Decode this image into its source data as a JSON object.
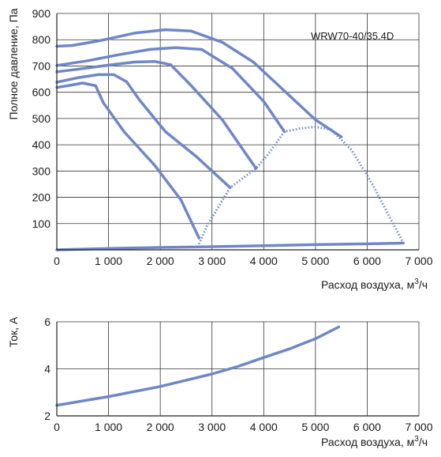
{
  "chart_data": [
    {
      "type": "line",
      "title": "",
      "annotation": "WRW70-40/35.4D",
      "ylabel": "Полное давление, Па",
      "xlabel": "Расход воздуха, м",
      "xlabel_sup": "3",
      "xlabel_suffix": "/ч",
      "xlim": [
        0,
        7000
      ],
      "ylim": [
        0,
        900
      ],
      "xticks": [
        0,
        1000,
        2000,
        3000,
        4000,
        5000,
        6000,
        7000
      ],
      "xtick_labels": [
        "0",
        "1 000",
        "2 000",
        "3 000",
        "4 000",
        "5 000",
        "6 000",
        "7 000"
      ],
      "yticks": [
        100,
        200,
        300,
        400,
        500,
        600,
        700,
        800,
        900
      ],
      "ytick_labels": [
        "100",
        "200",
        "300",
        "400",
        "500",
        "600",
        "700",
        "800",
        "900"
      ],
      "grid": true,
      "line_color": "#6f87c6",
      "series": [
        {
          "style": "solid",
          "x": [
            0,
            300,
            800,
            1500,
            2100,
            2600,
            3200,
            3800,
            4400,
            5000,
            5500
          ],
          "y": [
            775,
            778,
            795,
            825,
            838,
            833,
            790,
            715,
            605,
            495,
            430
          ]
        },
        {
          "style": "solid",
          "x": [
            0,
            600,
            1200,
            1800,
            2300,
            2800,
            3400,
            4000,
            4400
          ],
          "y": [
            702,
            720,
            743,
            763,
            770,
            763,
            690,
            565,
            450
          ]
        },
        {
          "style": "solid",
          "x": [
            0,
            500,
            1000,
            1500,
            1900,
            2200,
            2600,
            3200,
            3850
          ],
          "y": [
            678,
            690,
            703,
            715,
            717,
            705,
            625,
            495,
            310
          ]
        },
        {
          "style": "solid",
          "x": [
            0,
            400,
            800,
            1100,
            1350,
            1600,
            2100,
            2700,
            3350
          ],
          "y": [
            638,
            655,
            667,
            667,
            640,
            570,
            450,
            355,
            237
          ]
        },
        {
          "style": "solid",
          "x": [
            0,
            300,
            500,
            750,
            900,
            1300,
            1900,
            2400,
            2750
          ],
          "y": [
            618,
            628,
            635,
            625,
            560,
            450,
            320,
            190,
            45
          ]
        },
        {
          "style": "solid",
          "x": [
            0,
            1000,
            2000,
            3000,
            4000,
            5000,
            6000,
            6500,
            6700
          ],
          "y": [
            0,
            5,
            9,
            12,
            16,
            20,
            23,
            25,
            26
          ]
        },
        {
          "style": "dashed",
          "x": [
            2750,
            2900,
            3350,
            3850,
            4050,
            4400,
            4700,
            5000,
            5300,
            5700,
            6100,
            6500,
            6700
          ],
          "y": [
            22,
            90,
            237,
            310,
            355,
            450,
            462,
            468,
            458,
            380,
            250,
            100,
            26
          ]
        }
      ]
    },
    {
      "type": "line",
      "title": "",
      "ylabel": "Ток, А",
      "xlabel": "Расход воздуха, м",
      "xlabel_sup": "3",
      "xlabel_suffix": "/ч",
      "xlim": [
        0,
        7000
      ],
      "ylim": [
        2,
        6
      ],
      "xticks": [
        0,
        1000,
        2000,
        3000,
        4000,
        5000,
        6000,
        7000
      ],
      "xtick_labels": [
        "0",
        "1 000",
        "2 000",
        "3 000",
        "4 000",
        "5 000",
        "6 000",
        "7 000"
      ],
      "yticks": [
        2,
        4,
        6
      ],
      "ytick_labels": [
        "2",
        "4",
        "6"
      ],
      "grid": true,
      "line_color": "#6f87c6",
      "series": [
        {
          "style": "solid",
          "x": [
            0,
            1000,
            2000,
            3000,
            3500,
            4000,
            4500,
            5000,
            5450
          ],
          "y": [
            2.45,
            2.82,
            3.25,
            3.78,
            4.1,
            4.48,
            4.85,
            5.28,
            5.78
          ]
        }
      ]
    }
  ]
}
